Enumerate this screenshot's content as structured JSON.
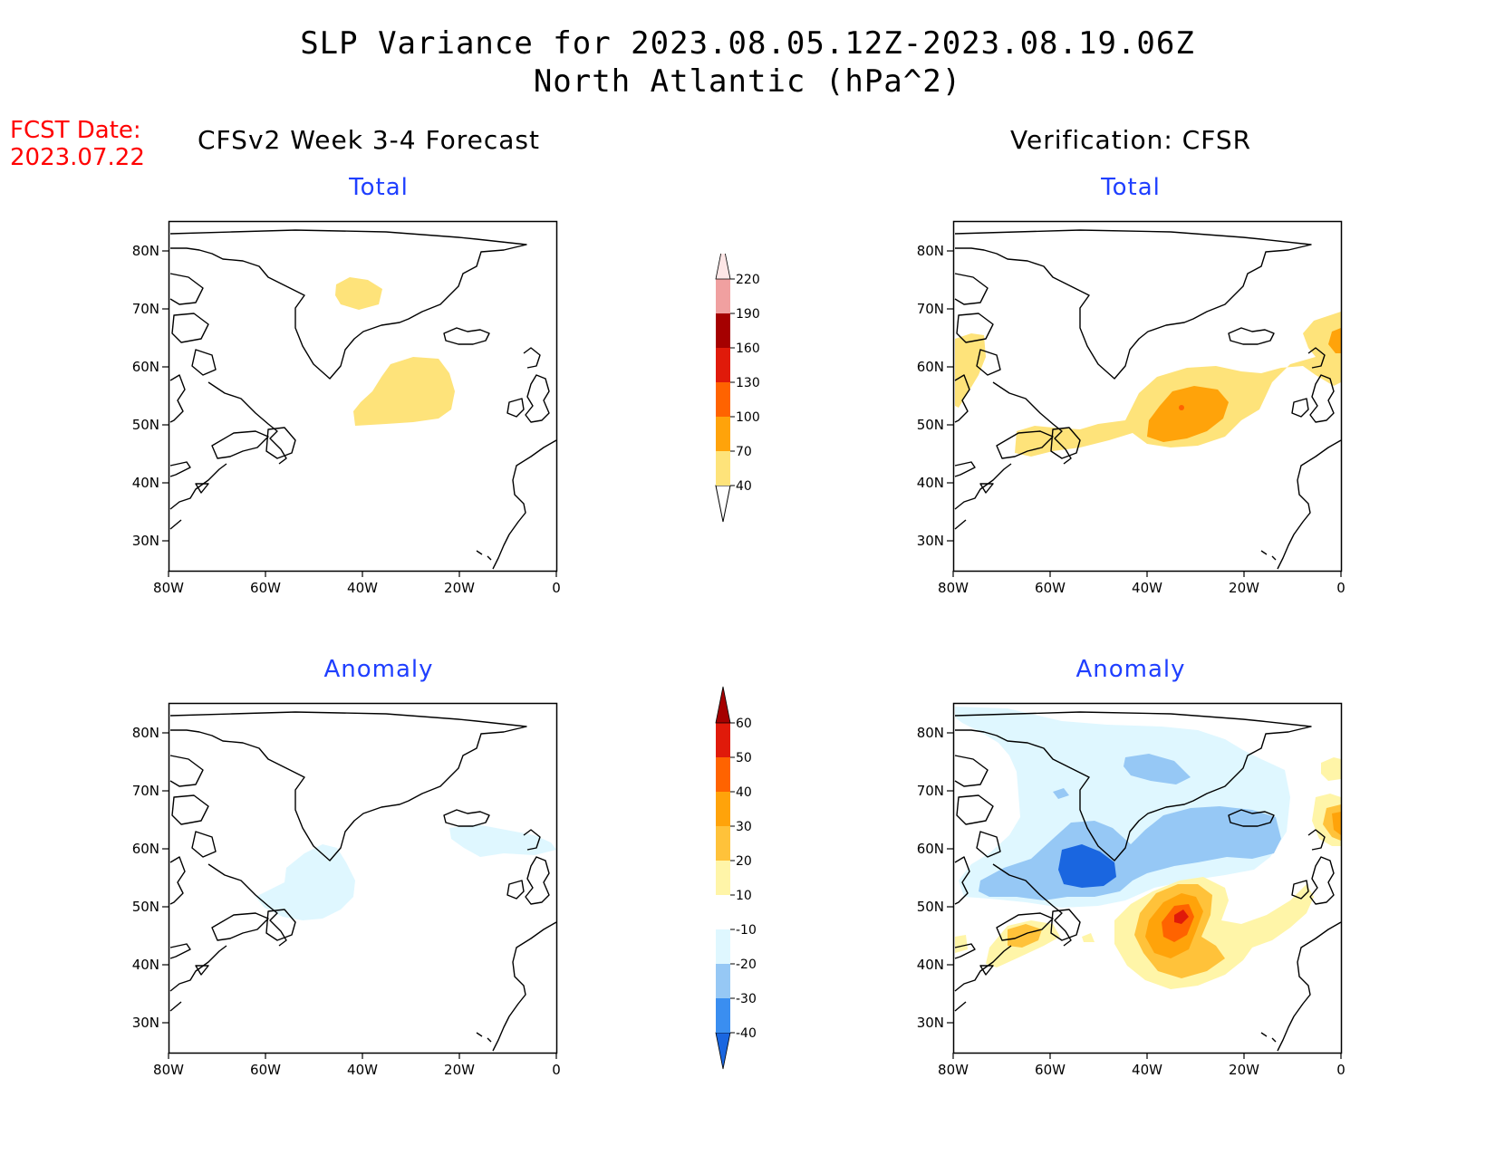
{
  "header": {
    "title_line1": "SLP Variance for 2023.08.05.12Z-2023.08.19.06Z",
    "title_line2": "North Atlantic (hPa^2)"
  },
  "fcst_date": {
    "label": "FCST Date:",
    "value": "2023.07.22"
  },
  "columns": {
    "left": "CFSv2 Week 3-4 Forecast",
    "right": "Verification: CFSR"
  },
  "panels": {
    "forecast_total_title": "Total",
    "forecast_anomaly_title": "Anomaly",
    "verification_total_title": "Total",
    "verification_anomaly_title": "Anomaly"
  },
  "map_axes": {
    "lon_labels": [
      "80W",
      "60W",
      "40W",
      "20W",
      "0"
    ],
    "lat_labels": [
      "80N",
      "70N",
      "60N",
      "50N",
      "40N",
      "30N"
    ]
  },
  "colorbars": {
    "total": {
      "levels": [
        "40",
        "70",
        "100",
        "130",
        "160",
        "190",
        "220"
      ],
      "colors": [
        "#fee37a",
        "#ffa30a",
        "#ff6300",
        "#e01a0a",
        "#a50000",
        "#f0a0a0",
        "#fde6e6"
      ]
    },
    "anomaly": {
      "levels": [
        "-40",
        "-30",
        "-20",
        "-10",
        "10",
        "20",
        "30",
        "40",
        "50",
        "60"
      ],
      "colors": [
        "#1a66e0",
        "#3a8ef0",
        "#96c8f5",
        "#dff7ff",
        "#ffffff",
        "#fff5a8",
        "#ffc23a",
        "#ffa30a",
        "#ff6300",
        "#e01a0a",
        "#a50000"
      ]
    }
  }
}
